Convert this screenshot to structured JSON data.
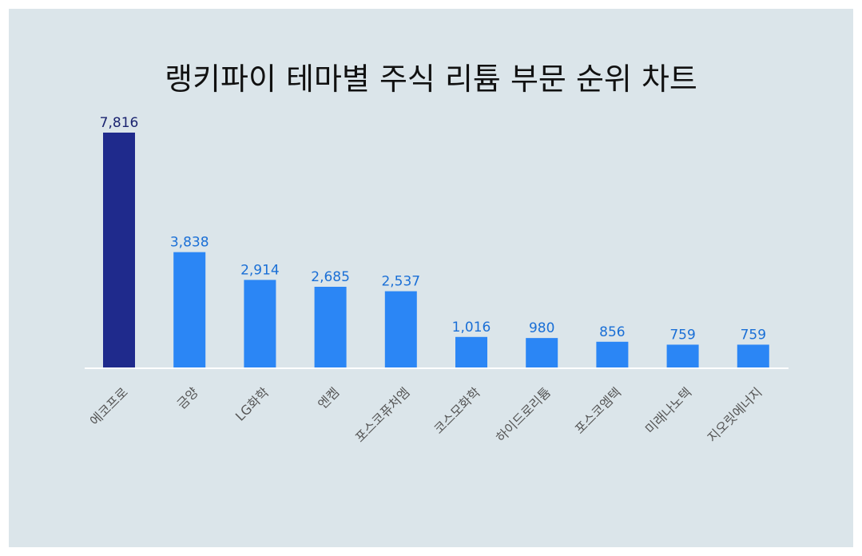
{
  "chart_data": {
    "type": "bar",
    "title": "랭키파이 테마별 주식 리튬 부문 순위 차트",
    "categories": [
      "에코프로",
      "금양",
      "LG화학",
      "엔켐",
      "포스코퓨처엠",
      "코스모화학",
      "하이드로리튬",
      "포스코엠텍",
      "미래나노텍",
      "지오릿에너지"
    ],
    "values": [
      7816,
      3838,
      2914,
      2685,
      2537,
      1016,
      980,
      856,
      759,
      759
    ],
    "value_labels": [
      "7,816",
      "3,838",
      "2,914",
      "2,685",
      "2,537",
      "1,016",
      "980",
      "856",
      "759",
      "759"
    ],
    "xlabel": "",
    "ylabel": "",
    "ylim": [
      0,
      7816
    ],
    "grid": false,
    "legend": "none",
    "colors": {
      "highlight_bar": "#1f2a8c",
      "bar": "#2b86f5",
      "highlight_label": "#1b2470",
      "label": "#1a6fd6",
      "background": "#dbe5ea",
      "baseline": "#ffffff"
    }
  }
}
